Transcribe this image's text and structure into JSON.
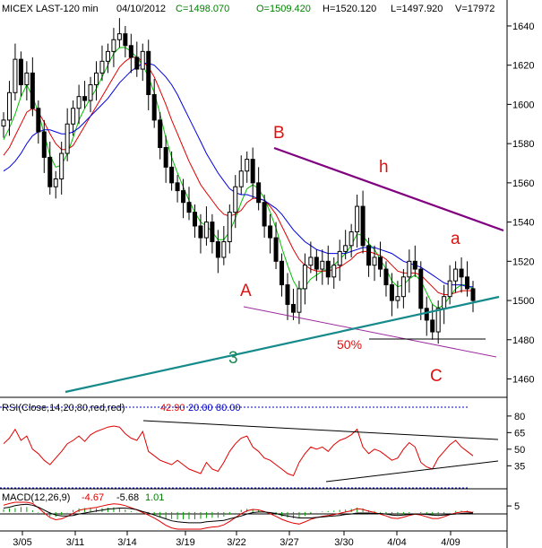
{
  "header": {
    "symbol": "MICEX LAST-120 min",
    "date": "04/10/2012",
    "close": "C=1498.070",
    "open": "O=1509.420",
    "high": "H=1520.120",
    "low": "L=1497.920",
    "volume": "V=17972"
  },
  "chart_data": [
    {
      "type": "candlestick",
      "title": "MICEX LAST-120 min",
      "x_ticks": [
        "3/05",
        "3/11",
        "3/14",
        "3/19",
        "3/22",
        "3/27",
        "3/30",
        "4/04",
        "4/09"
      ],
      "y_ticks": [
        1460,
        1480,
        1500,
        1520,
        1540,
        1560,
        1580,
        1600,
        1620,
        1640
      ],
      "ylim": [
        1452,
        1645
      ],
      "grid": false,
      "series": [
        {
          "name": "price",
          "color": "#000000",
          "values": [
            1592,
            1606,
            1623,
            1610,
            1616,
            1598,
            1586,
            1573,
            1558,
            1562,
            1575,
            1590,
            1598,
            1604,
            1602,
            1610,
            1616,
            1622,
            1627,
            1633,
            1636,
            1630,
            1624,
            1618,
            1627,
            1605,
            1592,
            1578,
            1568,
            1560,
            1556,
            1550,
            1545,
            1538,
            1532,
            1540,
            1530,
            1522,
            1530,
            1545,
            1558,
            1566,
            1572,
            1560,
            1550,
            1538,
            1532,
            1520,
            1508,
            1498,
            1494,
            1506,
            1518,
            1522,
            1516,
            1520,
            1512,
            1518,
            1525,
            1528,
            1535,
            1548,
            1528,
            1518,
            1522,
            1516,
            1508,
            1500,
            1502,
            1512,
            1520,
            1516,
            1496,
            1490,
            1484,
            1496,
            1502,
            1510,
            1516,
            1512,
            1506,
            1500
          ]
        },
        {
          "name": "ma-green",
          "color": "#00c000",
          "values": [
            1582,
            1588,
            1595,
            1604,
            1610,
            1604,
            1596,
            1585,
            1574,
            1568,
            1569,
            1575,
            1583,
            1592,
            1598,
            1603,
            1608,
            1614,
            1620,
            1626,
            1629,
            1629,
            1627,
            1624,
            1620,
            1614,
            1606,
            1595,
            1583,
            1573,
            1565,
            1558,
            1551,
            1545,
            1540,
            1538,
            1535,
            1531,
            1531,
            1535,
            1542,
            1550,
            1557,
            1559,
            1557,
            1552,
            1545,
            1537,
            1527,
            1518,
            1510,
            1505,
            1507,
            1511,
            1513,
            1515,
            1516,
            1518,
            1521,
            1524,
            1528,
            1534,
            1533,
            1529,
            1526,
            1521,
            1516,
            1510,
            1507,
            1508,
            1511,
            1513,
            1510,
            1504,
            1498,
            1496,
            1498,
            1502,
            1506,
            1508,
            1508,
            1506
          ]
        },
        {
          "name": "ma-red",
          "color": "#e00000",
          "values": [
            1574,
            1578,
            1584,
            1590,
            1596,
            1598,
            1596,
            1591,
            1585,
            1580,
            1577,
            1577,
            1579,
            1584,
            1589,
            1594,
            1599,
            1604,
            1609,
            1614,
            1619,
            1622,
            1624,
            1624,
            1622,
            1619,
            1614,
            1607,
            1600,
            1592,
            1585,
            1578,
            1571,
            1565,
            1559,
            1555,
            1551,
            1547,
            1544,
            1543,
            1544,
            1546,
            1550,
            1552,
            1552,
            1551,
            1548,
            1544,
            1538,
            1532,
            1526,
            1521,
            1518,
            1516,
            1515,
            1515,
            1515,
            1516,
            1517,
            1519,
            1521,
            1524,
            1525,
            1525,
            1524,
            1523,
            1521,
            1518,
            1515,
            1514,
            1514,
            1514,
            1513,
            1510,
            1507,
            1504,
            1503,
            1503,
            1504,
            1505,
            1505,
            1505
          ]
        },
        {
          "name": "ma-blue",
          "color": "#0000e0",
          "values": [
            1566,
            1568,
            1571,
            1575,
            1580,
            1584,
            1586,
            1587,
            1587,
            1586,
            1585,
            1585,
            1586,
            1588,
            1591,
            1594,
            1597,
            1600,
            1603,
            1607,
            1611,
            1614,
            1617,
            1619,
            1621,
            1621,
            1620,
            1617,
            1614,
            1610,
            1605,
            1599,
            1593,
            1587,
            1581,
            1575,
            1570,
            1565,
            1561,
            1557,
            1555,
            1554,
            1554,
            1553,
            1552,
            1551,
            1549,
            1547,
            1544,
            1540,
            1536,
            1533,
            1530,
            1528,
            1526,
            1525,
            1524,
            1524,
            1524,
            1524,
            1525,
            1526,
            1527,
            1527,
            1527,
            1526,
            1525,
            1524,
            1522,
            1520,
            1519,
            1518,
            1517,
            1515,
            1513,
            1511,
            1509,
            1508,
            1508,
            1508,
            1507,
            1507
          ]
        }
      ],
      "annotations": [
        "B",
        "h",
        "a",
        "A",
        "C",
        "3",
        "50%"
      ]
    },
    {
      "type": "line",
      "title": "RSI(Close,14,20,80,red,red)",
      "legend": [
        "42.90",
        "20.00",
        "80.00"
      ],
      "y_ticks": [
        35,
        50,
        65,
        80
      ],
      "ylim": [
        15,
        88
      ],
      "values": [
        55,
        60,
        68,
        58,
        62,
        50,
        46,
        40,
        36,
        42,
        48,
        55,
        58,
        62,
        57,
        63,
        66,
        68,
        70,
        71,
        70,
        64,
        60,
        58,
        66,
        48,
        44,
        40,
        38,
        36,
        40,
        36,
        32,
        30,
        28,
        38,
        32,
        30,
        38,
        48,
        55,
        60,
        62,
        52,
        48,
        42,
        40,
        36,
        32,
        28,
        26,
        38,
        46,
        52,
        50,
        52,
        48,
        54,
        58,
        60,
        63,
        68,
        52,
        46,
        50,
        48,
        44,
        40,
        42,
        50,
        56,
        52,
        38,
        34,
        32,
        42,
        48,
        54,
        58,
        52,
        48,
        44
      ],
      "series_colors": [
        "#e00000"
      ]
    },
    {
      "type": "line",
      "title": "MACD(12,26,9)",
      "legend": [
        "-4.67",
        "-5.68",
        "1.01"
      ],
      "y_ticks": [
        5
      ],
      "ylim": [
        -14,
        8
      ]
    }
  ]
}
